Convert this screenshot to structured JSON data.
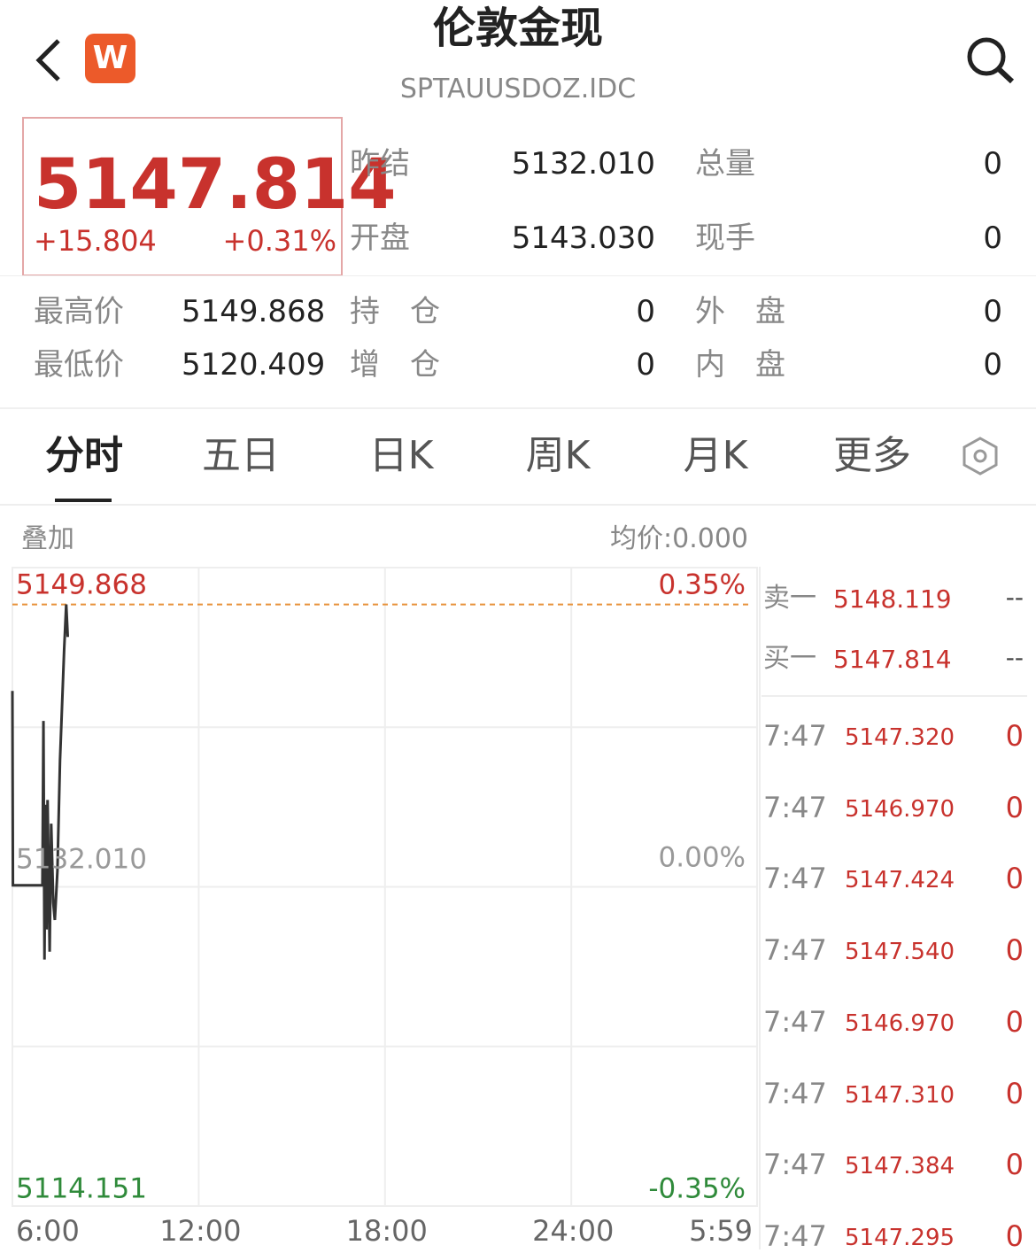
{
  "header": {
    "title": "伦敦金现",
    "subtitle": "SPTAUUSDOZ.IDC",
    "logo": "W"
  },
  "quote": {
    "price": "5147.814",
    "change": "+15.804",
    "change_pct": "+0.31%"
  },
  "stats": {
    "rows": [
      [
        {
          "label": "昨结",
          "value": "5132.010"
        },
        {
          "label": "总量",
          "value": "0"
        }
      ],
      [
        {
          "label": "开盘",
          "value": "5143.030"
        },
        {
          "label": "现手",
          "value": "0"
        }
      ]
    ],
    "extra_rows": [
      [
        {
          "label": "最高价",
          "value": "5149.868"
        },
        {
          "label": "持　仓",
          "value": "0"
        },
        {
          "label": "外　盘",
          "value": "0"
        }
      ],
      [
        {
          "label": "最低价",
          "value": "5120.409"
        },
        {
          "label": "增　仓",
          "value": "0"
        },
        {
          "label": "内　盘",
          "value": "0"
        }
      ]
    ]
  },
  "tabs": [
    "分时",
    "五日",
    "日K",
    "周K",
    "月K",
    "更多"
  ],
  "chart_data": {
    "type": "line",
    "overlay_label": "叠加",
    "avg_label": "均价:0.000",
    "x": [
      0,
      1,
      30,
      58,
      60,
      62,
      64,
      66,
      68,
      70,
      72,
      75,
      79,
      82,
      87,
      92,
      100,
      104,
      107
    ],
    "values": [
      5144.4,
      5132.1,
      5132.1,
      5132.1,
      5142.5,
      5127.4,
      5137.2,
      5129.3,
      5137.5,
      5133.0,
      5127.9,
      5136.0,
      5131.0,
      5129.9,
      5133.0,
      5140.0,
      5147.0,
      5149.868,
      5147.814
    ],
    "color": "#333333",
    "xlim": [
      0,
      1439
    ],
    "xticks": [
      {
        "value": 0,
        "label": "6:00"
      },
      {
        "value": 360,
        "label": "12:00"
      },
      {
        "value": 720,
        "label": "18:00"
      },
      {
        "value": 1080,
        "label": "24:00"
      },
      {
        "value": 1439,
        "label": "5:59"
      }
    ],
    "ylim": [
      5111.8,
      5152.2
    ],
    "yticks": [
      {
        "value": 5149.868,
        "label": "5149.868"
      },
      {
        "value": 5132.01,
        "label": "5132.010"
      },
      {
        "value": 5114.151,
        "label": "5114.151"
      }
    ],
    "y2ticks": [
      "0.35%",
      "0.00%",
      "-0.35%"
    ],
    "high_line": 5149.868,
    "grid": true
  },
  "order_book": [
    {
      "label": "卖一",
      "price": "5148.119",
      "volume": "--"
    },
    {
      "label": "买一",
      "price": "5147.814",
      "volume": "--"
    }
  ],
  "trades": [
    {
      "time": "7:47",
      "price": "5147.320",
      "volume": "0"
    },
    {
      "time": "7:47",
      "price": "5146.970",
      "volume": "0"
    },
    {
      "time": "7:47",
      "price": "5147.424",
      "volume": "0"
    },
    {
      "time": "7:47",
      "price": "5147.540",
      "volume": "0"
    },
    {
      "time": "7:47",
      "price": "5146.970",
      "volume": "0"
    },
    {
      "time": "7:47",
      "price": "5147.310",
      "volume": "0"
    },
    {
      "time": "7:47",
      "price": "5147.384",
      "volume": "0"
    },
    {
      "time": "7:47",
      "price": "5147.295",
      "volume": "0"
    }
  ]
}
